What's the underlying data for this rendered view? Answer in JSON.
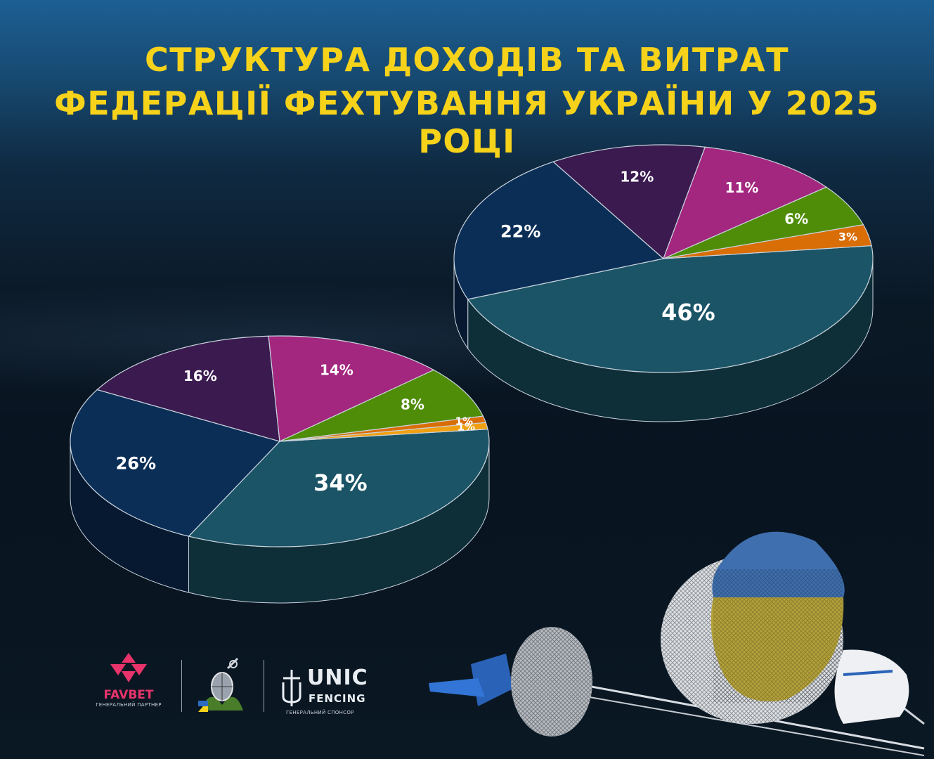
{
  "title": {
    "line1": "СТРУКТУРА ДОХОДІВ ТА ВИТРАТ",
    "line2": "ФЕДЕРАЦІЇ ФЕХТУВАННЯ УКРАЇНИ  У 2025 РОЦІ"
  },
  "chart_data": [
    {
      "type": "pie",
      "labels": [
        "46%",
        "22%",
        "12%",
        "11%",
        "6%",
        "3%"
      ],
      "values": [
        46,
        22,
        12,
        11,
        6,
        3
      ],
      "colors": [
        "#1a5466",
        "#0b2e57",
        "#3a1a4f",
        "#a3267f",
        "#4f8d08",
        "#d96d06"
      ]
    },
    {
      "type": "pie",
      "labels": [
        "34%",
        "26%",
        "16%",
        "14%",
        "8%",
        "1%",
        "1%"
      ],
      "values": [
        34,
        26,
        16,
        14,
        8,
        1,
        1
      ],
      "colors": [
        "#1a5466",
        "#0b2e57",
        "#3a1a4f",
        "#a3267f",
        "#4f8d08",
        "#d96d06",
        "#f0a010"
      ]
    }
  ],
  "logos": {
    "favbet_name": "FAVBET",
    "favbet_caption": "ГЕНЕРАЛЬНИЙ ПАРТНЕР",
    "unic_line1": "UNIC",
    "unic_line2": "FENCING",
    "unic_caption": "ГЕНЕРАЛЬНИЙ СПОНСОР"
  }
}
